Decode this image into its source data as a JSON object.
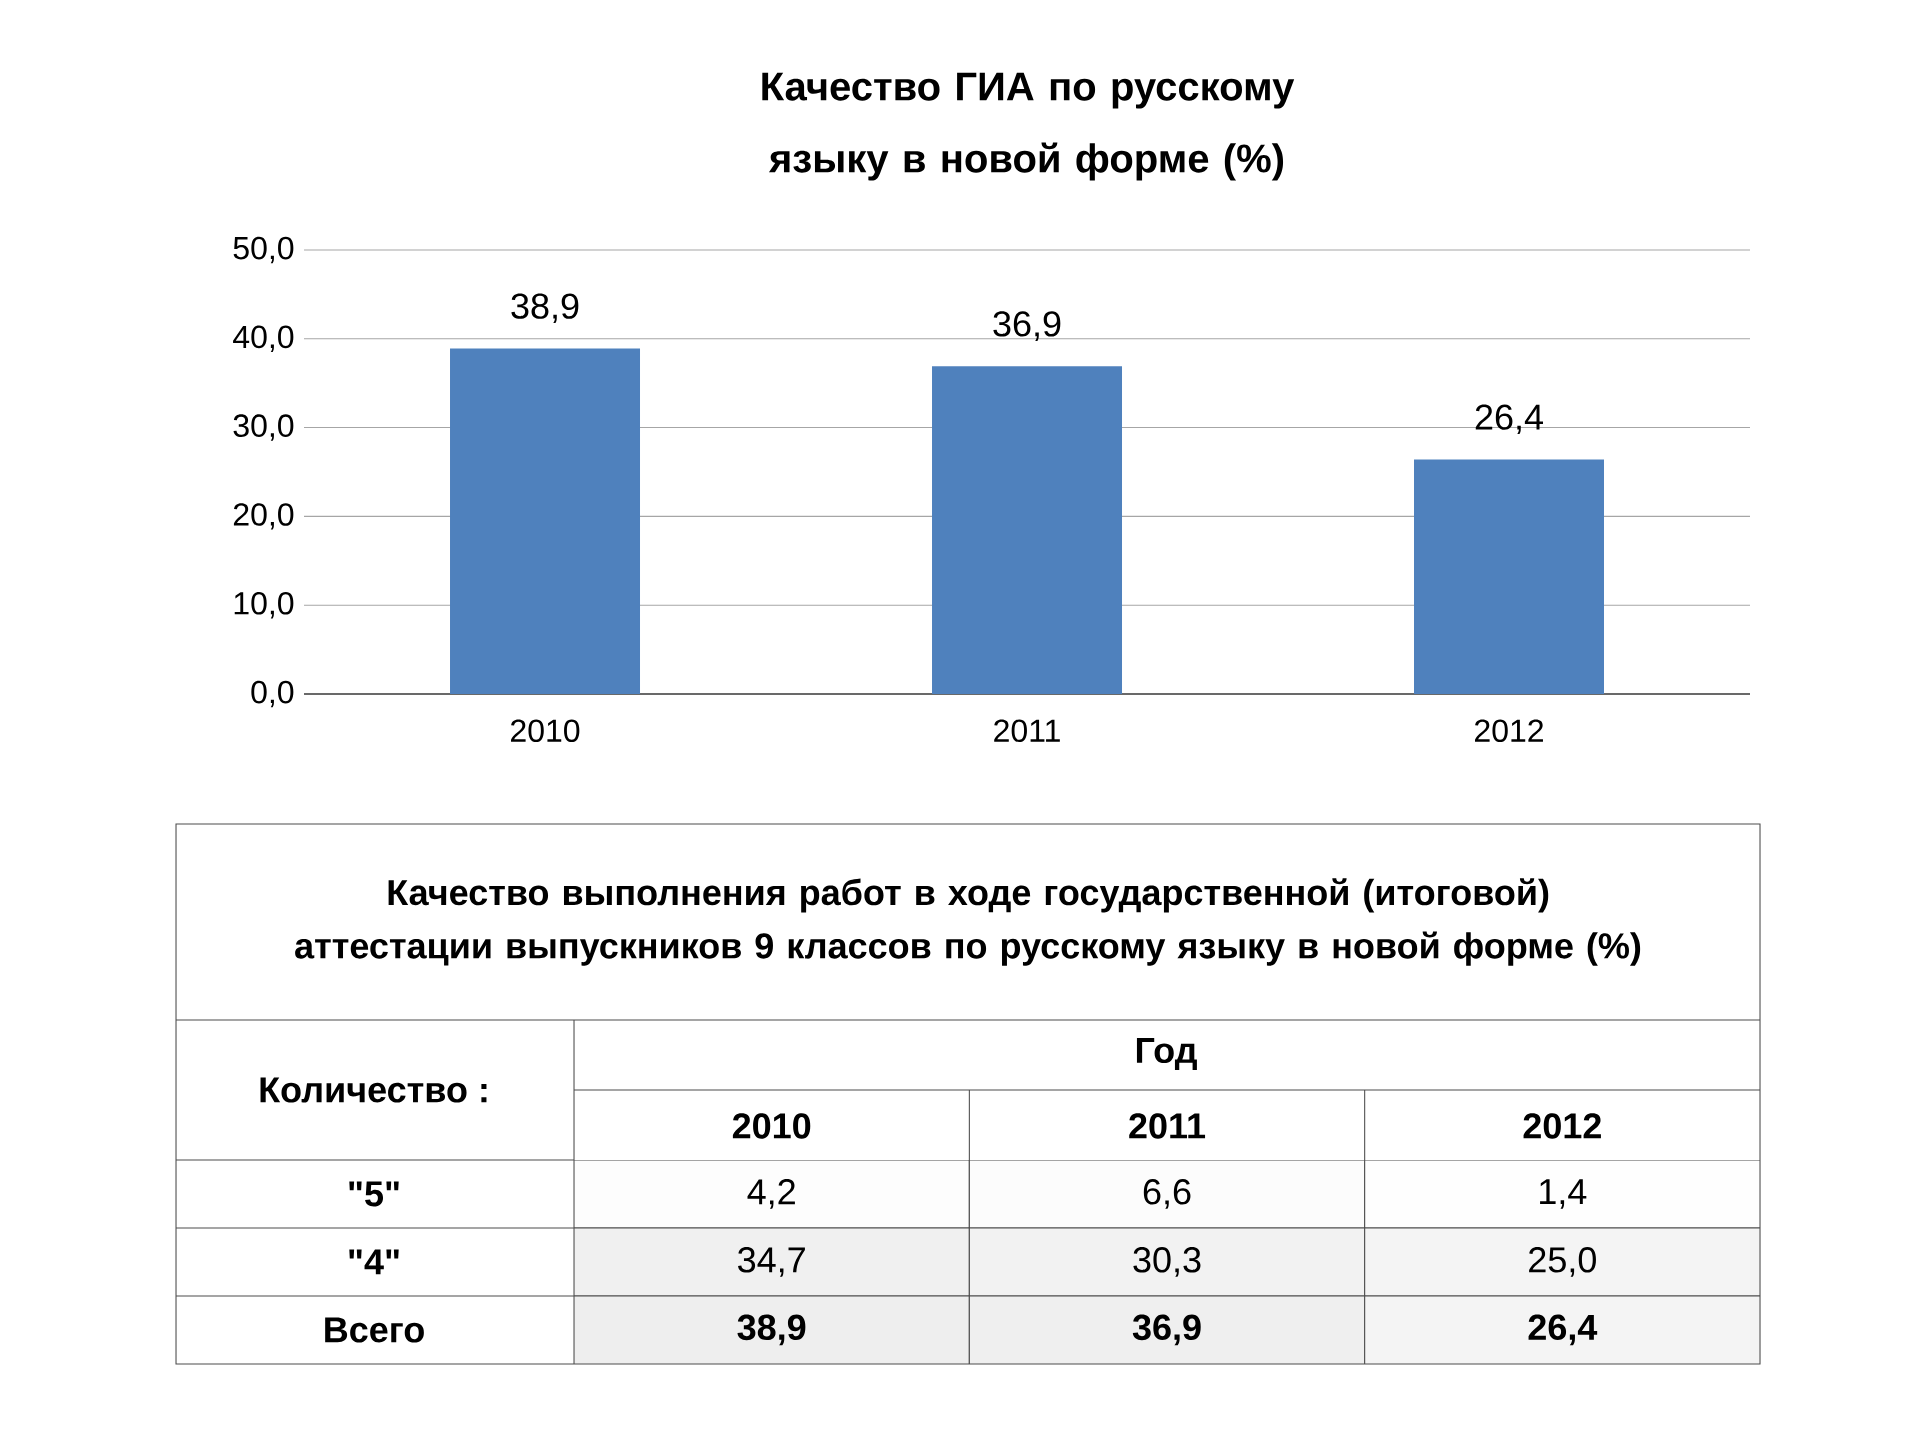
{
  "chart_data": [
    {
      "type": "bar",
      "title": "Качество ГИА по русскому языку в новой форме (%)",
      "categories": [
        "2010",
        "2011",
        "2012"
      ],
      "values": [
        38.9,
        36.9,
        26.4
      ],
      "color": "#4f81bd",
      "value_labels": [
        "38,9",
        "36,9",
        "26,4"
      ],
      "ylim": [
        0,
        50
      ],
      "yticks": [
        {
          "value": 0,
          "label": "0,0"
        },
        {
          "value": 10,
          "label": "10,0"
        },
        {
          "value": 20,
          "label": "20,0"
        },
        {
          "value": 30,
          "label": "30,0"
        },
        {
          "value": 40,
          "label": "40,0"
        },
        {
          "value": 50,
          "label": "50,0"
        }
      ],
      "grid": "y"
    },
    {
      "type": "heatmap",
      "title": "Качество выполнения работ в ходе государственной (итоговой) аттестации выпускников 9 классов по русскому языку в новой форме (%)",
      "xlabel": "Год",
      "ylabel": "Количество :",
      "categories": [
        "2010",
        "2011",
        "2012"
      ],
      "y_categories": [
        "\"5\"",
        "\"4\"",
        "Всего"
      ],
      "cells": [
        [
          4.2,
          6.6,
          1.4
        ],
        [
          34.7,
          30.3,
          25.0
        ],
        [
          38.9,
          36.9,
          26.4
        ]
      ],
      "cell_labels": [
        [
          "4,2",
          "6,6",
          "1,4"
        ],
        [
          "34,7",
          "30,3",
          "25,0"
        ],
        [
          "38,9",
          "36,9",
          "26,4"
        ]
      ],
      "color": "#ffffff"
    }
  ]
}
